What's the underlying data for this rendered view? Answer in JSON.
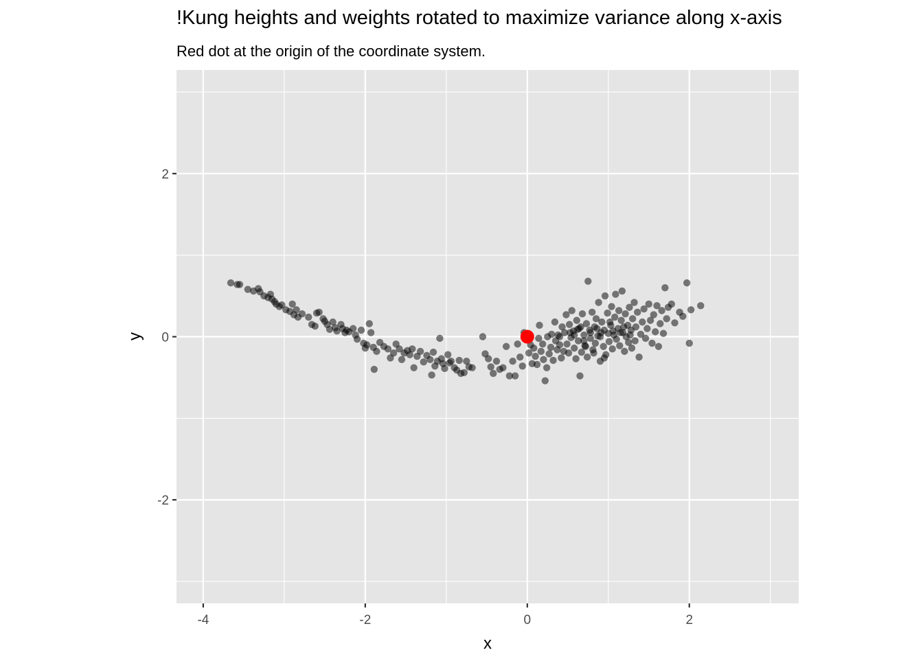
{
  "chart_data": {
    "type": "scatter",
    "title": "!Kung heights and weights rotated to maximize variance along x-axis",
    "subtitle": "Red dot at the origin of the coordinate system.",
    "xlabel": "x",
    "ylabel": "y",
    "xlim": [
      -4.33,
      3.35
    ],
    "ylim": [
      -3.27,
      3.27
    ],
    "x_ticks": [
      -4,
      -2,
      0,
      2
    ],
    "y_ticks": [
      -2,
      0,
      2
    ],
    "grid": true,
    "colors": {
      "panel": "#e5e5e5",
      "grid": "#ffffff",
      "points": "#000000",
      "origin": "#ff0000"
    },
    "origin_point": {
      "x": 0,
      "y": 0,
      "label": "origin"
    },
    "points": [
      [
        -3.66,
        0.66
      ],
      [
        -3.58,
        0.64
      ],
      [
        -3.55,
        0.64
      ],
      [
        -3.45,
        0.58
      ],
      [
        -3.38,
        0.56
      ],
      [
        -3.32,
        0.59
      ],
      [
        -3.3,
        0.55
      ],
      [
        -3.25,
        0.5
      ],
      [
        -3.2,
        0.48
      ],
      [
        -3.17,
        0.52
      ],
      [
        -3.15,
        0.46
      ],
      [
        -3.12,
        0.43
      ],
      [
        -3.1,
        0.4
      ],
      [
        -3.06,
        0.37
      ],
      [
        -3.03,
        0.39
      ],
      [
        -2.98,
        0.33
      ],
      [
        -2.93,
        0.31
      ],
      [
        -2.9,
        0.4
      ],
      [
        -2.88,
        0.27
      ],
      [
        -2.85,
        0.33
      ],
      [
        -2.83,
        0.24
      ],
      [
        -2.78,
        0.28
      ],
      [
        -2.7,
        0.24
      ],
      [
        -2.66,
        0.15
      ],
      [
        -2.62,
        0.13
      ],
      [
        -2.6,
        0.29
      ],
      [
        -2.57,
        0.3
      ],
      [
        -2.52,
        0.22
      ],
      [
        -2.5,
        0.19
      ],
      [
        -2.47,
        0.15
      ],
      [
        -2.44,
        0.09
      ],
      [
        -2.4,
        0.18
      ],
      [
        -2.37,
        0.11
      ],
      [
        -2.35,
        0.07
      ],
      [
        -2.3,
        0.15
      ],
      [
        -2.28,
        0.1
      ],
      [
        -2.25,
        0.05
      ],
      [
        -2.23,
        0.08
      ],
      [
        -2.2,
        0.06
      ],
      [
        -2.15,
        0.1
      ],
      [
        -2.12,
        0.02
      ],
      [
        -2.1,
        -0.03
      ],
      [
        -2.05,
        0.08
      ],
      [
        -2.02,
        -0.08
      ],
      [
        -2.0,
        -0.14
      ],
      [
        -1.98,
        -0.1
      ],
      [
        -1.95,
        0.16
      ],
      [
        -1.93,
        0.05
      ],
      [
        -1.9,
        -0.13
      ],
      [
        -1.89,
        -0.4
      ],
      [
        -1.86,
        -0.18
      ],
      [
        -1.82,
        -0.07
      ],
      [
        -1.77,
        -0.12
      ],
      [
        -1.72,
        -0.15
      ],
      [
        -1.69,
        -0.26
      ],
      [
        -1.65,
        -0.2
      ],
      [
        -1.62,
        -0.09
      ],
      [
        -1.58,
        -0.15
      ],
      [
        -1.55,
        -0.28
      ],
      [
        -1.52,
        -0.2
      ],
      [
        -1.48,
        -0.17
      ],
      [
        -1.45,
        -0.22
      ],
      [
        -1.42,
        -0.15
      ],
      [
        -1.4,
        -0.38
      ],
      [
        -1.36,
        -0.24
      ],
      [
        -1.32,
        -0.18
      ],
      [
        -1.28,
        -0.31
      ],
      [
        -1.24,
        -0.23
      ],
      [
        -1.2,
        -0.28
      ],
      [
        -1.18,
        -0.47
      ],
      [
        -1.16,
        -0.19
      ],
      [
        -1.14,
        -0.36
      ],
      [
        -1.11,
        -0.3
      ],
      [
        -1.08,
        -0.02
      ],
      [
        -1.06,
        -0.27
      ],
      [
        -1.04,
        -0.33
      ],
      [
        -1.02,
        -0.39
      ],
      [
        -0.98,
        -0.22
      ],
      [
        -0.96,
        -0.32
      ],
      [
        -0.94,
        -0.3
      ],
      [
        -0.9,
        -0.38
      ],
      [
        -0.87,
        -0.41
      ],
      [
        -0.84,
        -0.29
      ],
      [
        -0.82,
        -0.45
      ],
      [
        -0.78,
        -0.44
      ],
      [
        -0.75,
        -0.3
      ],
      [
        -0.72,
        -0.37
      ],
      [
        -0.68,
        -0.38
      ],
      [
        -0.55,
        0.0
      ],
      [
        -0.52,
        -0.21
      ],
      [
        -0.48,
        -0.27
      ],
      [
        -0.45,
        -0.37
      ],
      [
        -0.42,
        -0.45
      ],
      [
        -0.38,
        -0.3
      ],
      [
        -0.34,
        -0.4
      ],
      [
        -0.3,
        -0.38
      ],
      [
        -0.26,
        -0.12
      ],
      [
        -0.22,
        -0.48
      ],
      [
        -0.18,
        -0.3
      ],
      [
        -0.15,
        -0.48
      ],
      [
        -0.12,
        -0.09
      ],
      [
        -0.09,
        -0.25
      ],
      [
        -0.06,
        -0.36
      ],
      [
        -0.04,
        0.05
      ],
      [
        0.02,
        -0.2
      ],
      [
        0.04,
        -0.1
      ],
      [
        0.06,
        -0.33
      ],
      [
        0.08,
        -0.14
      ],
      [
        0.1,
        -0.24
      ],
      [
        0.12,
        -0.34
      ],
      [
        0.14,
        -0.02
      ],
      [
        0.15,
        0.14
      ],
      [
        0.17,
        -0.18
      ],
      [
        0.19,
        -0.09
      ],
      [
        0.2,
        -0.28
      ],
      [
        0.22,
        -0.54
      ],
      [
        0.24,
        -0.38
      ],
      [
        0.25,
        0.0
      ],
      [
        0.27,
        -0.21
      ],
      [
        0.29,
        -0.13
      ],
      [
        0.3,
        0.03
      ],
      [
        0.32,
        -0.29
      ],
      [
        0.34,
        0.18
      ],
      [
        0.35,
        -0.05
      ],
      [
        0.37,
        -0.16
      ],
      [
        0.38,
        0.02
      ],
      [
        0.4,
        -0.1
      ],
      [
        0.42,
        -0.26
      ],
      [
        0.43,
        0.12
      ],
      [
        0.45,
        -0.18
      ],
      [
        0.46,
        0.05
      ],
      [
        0.48,
        0.27
      ],
      [
        0.49,
        -0.09
      ],
      [
        0.51,
        -0.2
      ],
      [
        0.52,
        0.15
      ],
      [
        0.54,
        -0.01
      ],
      [
        0.55,
        0.32
      ],
      [
        0.57,
        0.07
      ],
      [
        0.58,
        -0.14
      ],
      [
        0.6,
        -0.27
      ],
      [
        0.61,
        0.2
      ],
      [
        0.63,
        -0.05
      ],
      [
        0.64,
        0.1
      ],
      [
        0.65,
        -0.48
      ],
      [
        0.67,
        -0.19
      ],
      [
        0.68,
        0.28
      ],
      [
        0.7,
        0.02
      ],
      [
        0.71,
        -0.11
      ],
      [
        0.73,
        0.16
      ],
      [
        0.74,
        -0.25
      ],
      [
        0.75,
        0.68
      ],
      [
        0.77,
        0.08
      ],
      [
        0.78,
        -0.02
      ],
      [
        0.8,
        0.3
      ],
      [
        0.81,
        -0.16
      ],
      [
        0.83,
        0.12
      ],
      [
        0.84,
        -0.08
      ],
      [
        0.85,
        0.22
      ],
      [
        0.87,
        0.01
      ],
      [
        0.88,
        0.42
      ],
      [
        0.9,
        -0.3
      ],
      [
        0.91,
        0.05
      ],
      [
        0.92,
        0.18
      ],
      [
        0.94,
        -0.12
      ],
      [
        0.95,
        0.08
      ],
      [
        0.96,
        0.5
      ],
      [
        0.97,
        -0.22
      ],
      [
        0.99,
        0.29
      ],
      [
        1.0,
        0.04
      ],
      [
        1.01,
        -0.06
      ],
      [
        1.03,
        0.14
      ],
      [
        1.04,
        0.37
      ],
      [
        1.05,
        -0.15
      ],
      [
        1.07,
        0.02
      ],
      [
        1.08,
        0.24
      ],
      [
        1.09,
        0.52
      ],
      [
        1.1,
        -0.03
      ],
      [
        1.12,
        0.1
      ],
      [
        1.13,
        0.32
      ],
      [
        1.14,
        -0.11
      ],
      [
        1.16,
        0.2
      ],
      [
        1.17,
        0.56
      ],
      [
        1.18,
        0.05
      ],
      [
        1.2,
        -0.18
      ],
      [
        1.21,
        0.28
      ],
      [
        1.22,
        0.0
      ],
      [
        1.24,
        0.14
      ],
      [
        1.25,
        -0.07
      ],
      [
        1.26,
        0.36
      ],
      [
        1.28,
        0.08
      ],
      [
        1.29,
        -0.14
      ],
      [
        1.3,
        0.22
      ],
      [
        1.32,
        0.42
      ],
      [
        1.33,
        -0.05
      ],
      [
        1.34,
        0.12
      ],
      [
        1.36,
        0.3
      ],
      [
        1.38,
        -0.25
      ],
      [
        1.4,
        0.03
      ],
      [
        1.42,
        0.18
      ],
      [
        1.44,
        0.34
      ],
      [
        1.46,
        -0.02
      ],
      [
        1.48,
        0.1
      ],
      [
        1.5,
        0.4
      ],
      [
        1.52,
        0.2
      ],
      [
        1.54,
        -0.08
      ],
      [
        1.56,
        0.27
      ],
      [
        1.58,
        0.06
      ],
      [
        1.6,
        0.38
      ],
      [
        1.62,
        -0.12
      ],
      [
        1.64,
        0.16
      ],
      [
        1.66,
        0.32
      ],
      [
        1.68,
        0.04
      ],
      [
        1.7,
        0.6
      ],
      [
        1.72,
        0.22
      ],
      [
        1.74,
        0.36
      ],
      [
        1.78,
        0.4
      ],
      [
        1.82,
        0.17
      ],
      [
        1.88,
        0.3
      ],
      [
        1.92,
        0.25
      ],
      [
        1.97,
        0.66
      ],
      [
        2.0,
        -0.08
      ],
      [
        2.02,
        0.33
      ],
      [
        2.14,
        0.38
      ],
      [
        0.95,
        -0.26
      ],
      [
        0.62,
        0.09
      ],
      [
        0.7,
        -0.05
      ],
      [
        0.86,
        0.1
      ],
      [
        1.02,
        0.18
      ],
      [
        1.15,
        0.05
      ],
      [
        0.53,
        0.05
      ],
      [
        0.78,
        0.05
      ],
      [
        0.9,
        0.0
      ],
      [
        1.06,
        0.07
      ],
      [
        0.4,
        0.0
      ],
      [
        0.66,
        0.12
      ],
      [
        1.19,
        0.12
      ],
      [
        1.27,
        0.02
      ],
      [
        0.82,
        -0.2
      ],
      [
        0.58,
        0.02
      ],
      [
        0.72,
        -0.12
      ]
    ]
  }
}
